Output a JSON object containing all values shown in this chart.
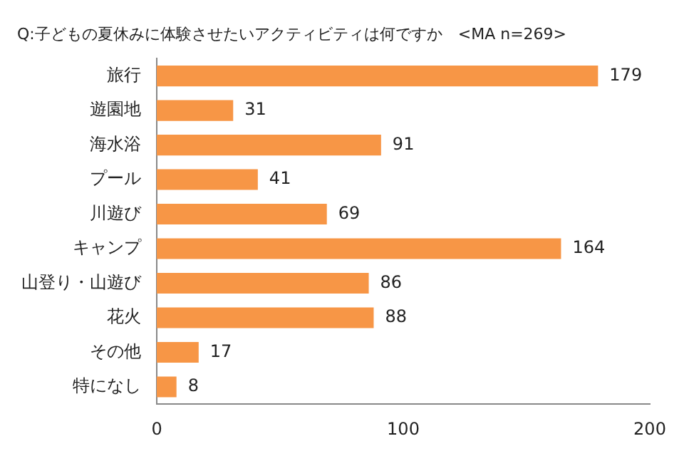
{
  "chart_data": {
    "type": "bar",
    "orientation": "horizontal",
    "title": "Q:子どもの夏休みに体験させたいアクティビティは何ですか　<MA n=269>",
    "categories": [
      "旅行",
      "遊園地",
      "海水浴",
      "プール",
      "川遊び",
      "キャンプ",
      "山登り・山遊び",
      "花火",
      "その他",
      "特になし"
    ],
    "values": [
      179,
      31,
      91,
      41,
      69,
      164,
      86,
      88,
      17,
      8
    ],
    "color": "#f79646",
    "xlim": [
      0,
      200
    ],
    "xticks": [
      0,
      100,
      200
    ],
    "grid": false,
    "legend": false,
    "data_labels": true
  }
}
